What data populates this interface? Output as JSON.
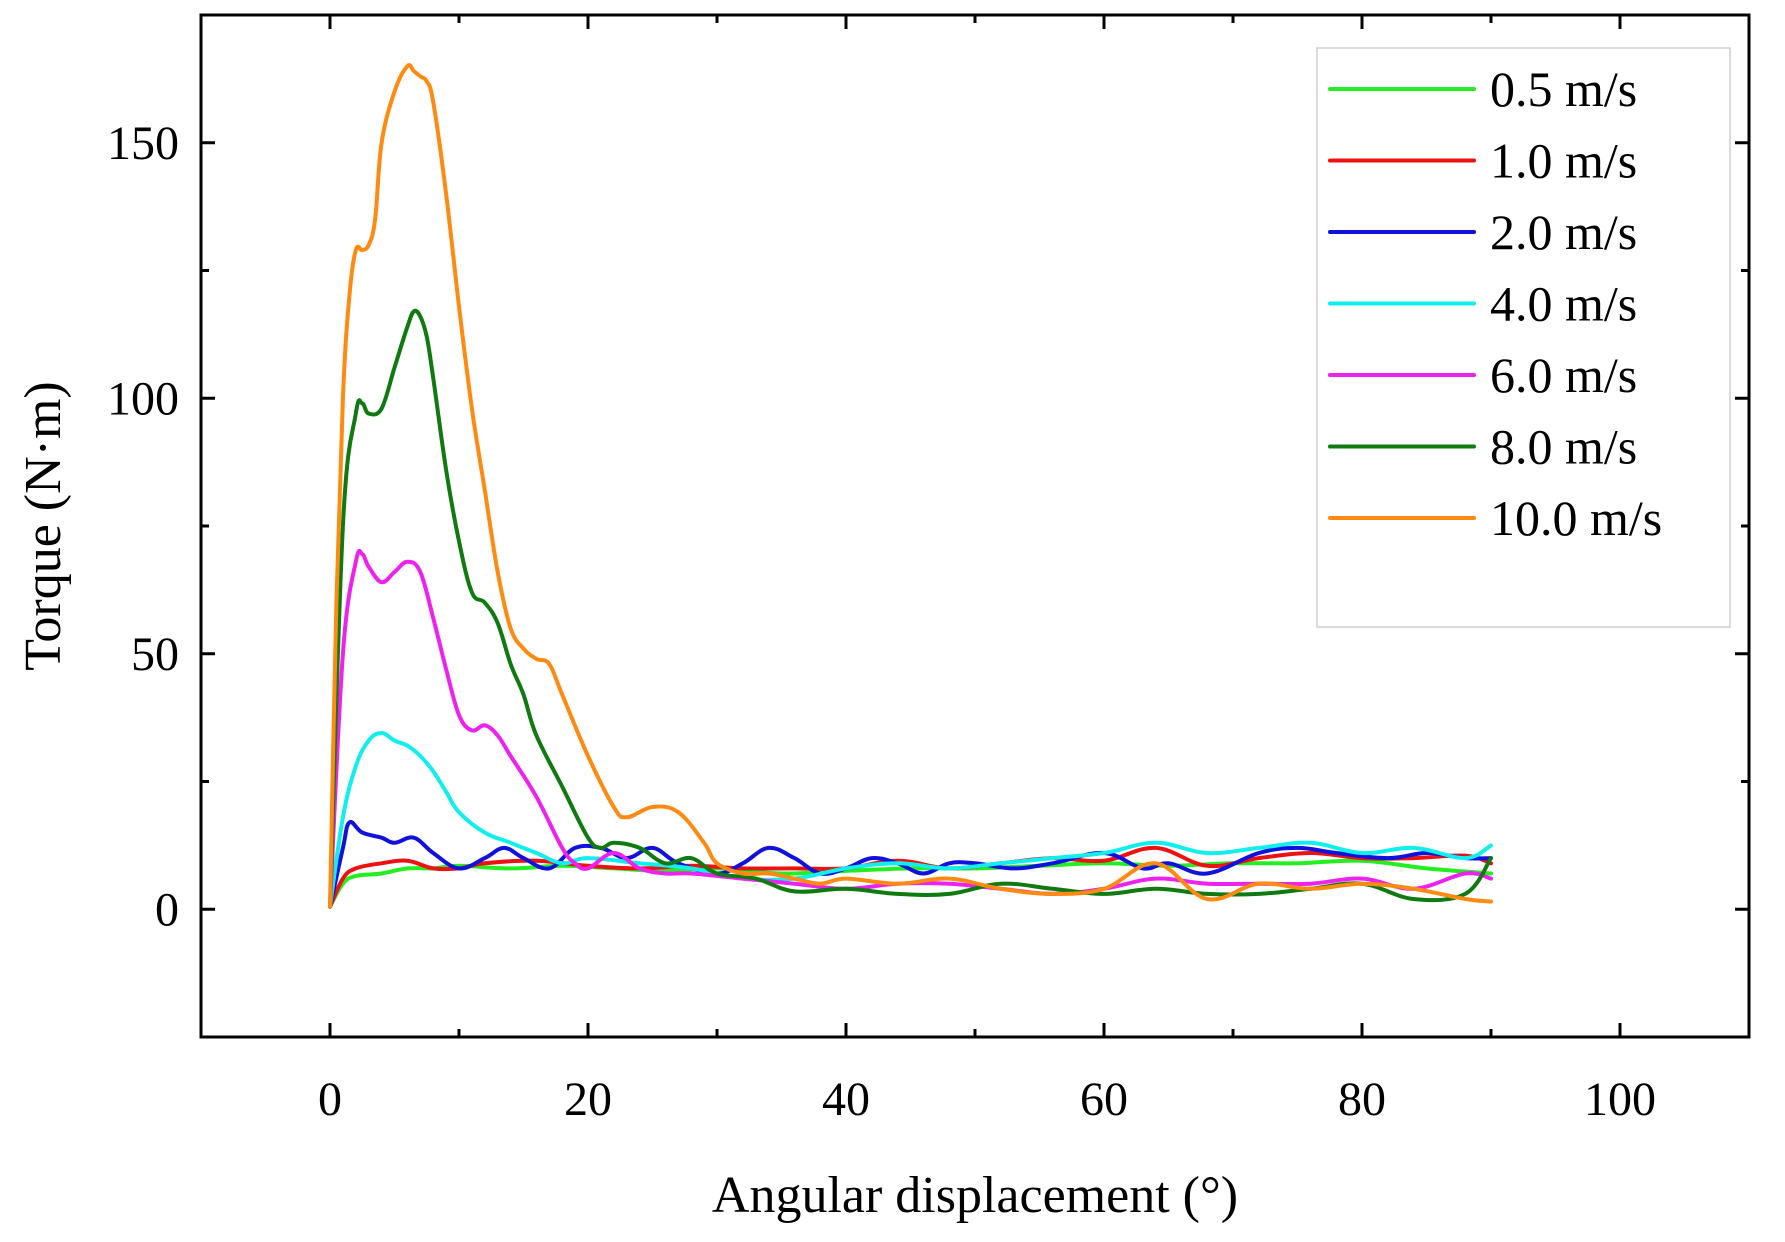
{
  "chart_data": {
    "type": "line",
    "title": "",
    "xlabel": "Angular displacement (°)",
    "ylabel": "Torque (N·m)",
    "xlim": [
      -10,
      110
    ],
    "ylim": [
      -25,
      175
    ],
    "xticks": [
      0,
      20,
      40,
      60,
      80,
      100
    ],
    "yticks": [
      0,
      50,
      100,
      150
    ],
    "xtick_labels": [
      "0",
      "20",
      "40",
      "60",
      "80",
      "100"
    ],
    "ytick_labels": [
      "0",
      "50",
      "100",
      "150"
    ],
    "grid": false,
    "legend_position": "top-right",
    "series": [
      {
        "name": "0.5 m/s",
        "color": "#22ee22",
        "x": [
          0,
          1,
          2,
          4,
          6,
          8,
          10,
          14,
          18,
          22,
          26,
          30,
          35,
          40,
          45,
          50,
          55,
          60,
          65,
          70,
          75,
          80,
          85,
          90
        ],
        "y": [
          0.5,
          5,
          6.5,
          7,
          8,
          8,
          8.5,
          8,
          8.5,
          8,
          7.5,
          8,
          7,
          7.5,
          8,
          8,
          8.5,
          9,
          8.5,
          9,
          9,
          9.5,
          8,
          7
        ]
      },
      {
        "name": "1.0 m/s",
        "color": "#ee1111",
        "x": [
          0,
          1,
          2,
          4,
          6,
          8,
          10,
          12,
          16,
          20,
          24,
          28,
          32,
          36,
          40,
          44,
          48,
          52,
          56,
          60,
          64,
          68,
          72,
          76,
          80,
          84,
          88,
          90
        ],
        "y": [
          0.5,
          6,
          8,
          9,
          9.5,
          8,
          8,
          9,
          9.5,
          8.5,
          8,
          8.5,
          8,
          8,
          8,
          9.5,
          8,
          9,
          10,
          9.5,
          12,
          8.5,
          10,
          11,
          10,
          10,
          10.5,
          9
        ]
      },
      {
        "name": "2.0 m/s",
        "color": "#1111dd",
        "x": [
          0,
          1,
          1.5,
          2.5,
          4,
          5,
          6.5,
          8,
          10,
          12,
          13.5,
          15,
          17,
          19,
          21,
          23,
          25,
          27,
          30,
          32,
          34,
          36,
          38,
          40,
          42,
          44,
          46,
          48,
          50,
          53,
          56,
          60,
          63,
          65,
          68,
          72,
          75,
          78,
          82,
          85,
          88,
          90
        ],
        "y": [
          0.5,
          12,
          17,
          15,
          14,
          13,
          14,
          11,
          8,
          10,
          12,
          10,
          8,
          12,
          12,
          10,
          12,
          9,
          7,
          9,
          12,
          10,
          7,
          8,
          10,
          9,
          7,
          9,
          9,
          8,
          9,
          11,
          8,
          9,
          7,
          11,
          12,
          11,
          10,
          11,
          10,
          10
        ]
      },
      {
        "name": "4.0 m/s",
        "color": "#11eeee",
        "x": [
          0,
          1,
          2,
          3,
          4,
          5,
          6,
          7,
          8,
          9,
          10,
          12,
          14,
          16,
          18,
          20,
          24,
          28,
          32,
          36,
          40,
          44,
          48,
          52,
          56,
          60,
          64,
          68,
          72,
          76,
          80,
          84,
          88,
          90
        ],
        "y": [
          0.5,
          18,
          28,
          33,
          34.5,
          33,
          32,
          30,
          27,
          23,
          19,
          15,
          13,
          11,
          9,
          10,
          9,
          8,
          6,
          6,
          8,
          9,
          8,
          9,
          10,
          11,
          13,
          11,
          12,
          13,
          11,
          12,
          10,
          12.5
        ]
      },
      {
        "name": "6.0 m/s",
        "color": "#ee22ee",
        "x": [
          0,
          1,
          2,
          2.5,
          3,
          4,
          5,
          6,
          7,
          8,
          9,
          10,
          11,
          12,
          13,
          14,
          16,
          18,
          19,
          20,
          22,
          24,
          26,
          28,
          32,
          36,
          40,
          44,
          48,
          52,
          56,
          60,
          64,
          68,
          72,
          76,
          80,
          84,
          88,
          90
        ],
        "y": [
          0.5,
          50,
          68,
          69.5,
          67,
          64,
          66,
          68,
          66,
          57,
          47,
          38,
          35,
          36,
          34,
          30,
          22,
          12,
          9,
          8,
          11,
          8,
          7,
          7,
          6,
          5,
          4,
          5,
          5,
          4,
          3,
          4,
          6,
          5,
          5,
          5,
          6,
          4,
          7,
          6
        ]
      },
      {
        "name": "8.0 m/s",
        "color": "#0f7a0f",
        "x": [
          0,
          1,
          2,
          2.5,
          3,
          4,
          5,
          6,
          6.5,
          7,
          7.5,
          8,
          9,
          10,
          11,
          12,
          13,
          14,
          15,
          16,
          18,
          20,
          21,
          22,
          24,
          26,
          28,
          30,
          33,
          36,
          40,
          44,
          48,
          52,
          56,
          60,
          64,
          68,
          72,
          76,
          80,
          84,
          88,
          90
        ],
        "y": [
          0.5,
          75,
          97,
          99,
          97,
          98,
          106,
          114,
          117,
          116,
          112,
          104,
          86,
          72,
          62,
          60,
          56,
          48,
          42,
          34,
          24,
          14,
          12,
          13,
          12,
          9,
          10,
          7,
          6,
          3.5,
          4,
          3,
          3,
          5,
          4,
          3,
          4,
          3,
          3,
          4,
          5,
          2,
          3,
          10
        ]
      },
      {
        "name": "10.0 m/s",
        "color": "#ff8a11",
        "x": [
          0,
          0.5,
          1,
          1.5,
          2,
          2.5,
          3,
          3.5,
          4,
          5,
          6,
          6.5,
          7,
          7.5,
          8,
          9,
          10,
          11,
          12,
          13,
          14,
          15,
          16,
          17,
          18,
          20,
          22,
          23,
          25,
          27,
          29,
          30,
          32,
          34,
          36,
          38,
          40,
          44,
          48,
          52,
          56,
          60,
          64,
          68,
          72,
          76,
          80,
          84,
          88,
          90
        ],
        "y": [
          0.5,
          60,
          100,
          120,
          129,
          129,
          130,
          135,
          150,
          160,
          165,
          164,
          163,
          162,
          158,
          140,
          118,
          98,
          82,
          66,
          55,
          51,
          49,
          48,
          42,
          30,
          20,
          18,
          20,
          19,
          13,
          9,
          7,
          7,
          6,
          5,
          6,
          5,
          6,
          4,
          3,
          4,
          9,
          2,
          5,
          4,
          5,
          4,
          2,
          1.5
        ]
      }
    ]
  }
}
